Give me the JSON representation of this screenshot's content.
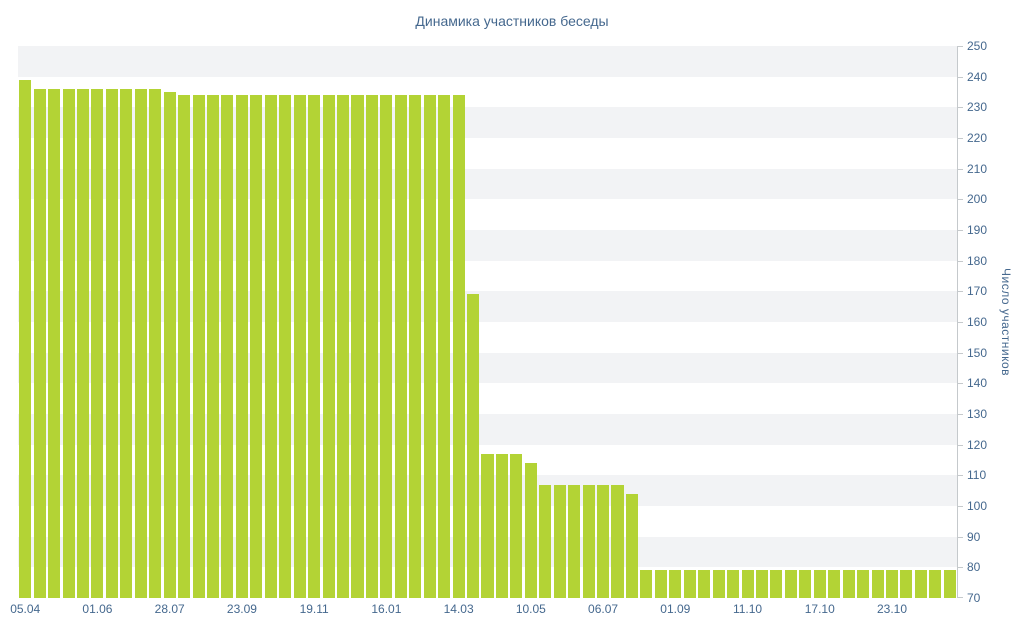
{
  "chart": {
    "title": "Динамика участников беседы",
    "ylabel": "Число участников"
  },
  "colors": {
    "bar": "#b3d335",
    "text": "#45688e",
    "stripe_dark": "#f2f3f5",
    "stripe_light": "#ffffff",
    "axis": "#c5c9cc"
  },
  "chart_data": {
    "type": "bar",
    "title": "Динамика участников беседы",
    "xlabel": "",
    "ylabel": "Число участников",
    "ylim": [
      70,
      250
    ],
    "grid": "striped-horizontal-bands",
    "legend": "none",
    "y_ticks": [
      70,
      80,
      90,
      100,
      110,
      120,
      130,
      140,
      150,
      160,
      170,
      180,
      190,
      200,
      210,
      220,
      230,
      240,
      250
    ],
    "x_tick_labels": [
      "05.04",
      "01.06",
      "28.07",
      "23.09",
      "19.11",
      "16.01",
      "14.03",
      "10.05",
      "06.07",
      "01.09",
      "11.10",
      "17.10",
      "23.10"
    ],
    "x_tick_every": 5,
    "values": [
      239,
      236,
      236,
      236,
      236,
      236,
      236,
      236,
      236,
      236,
      235,
      234,
      234,
      234,
      234,
      234,
      234,
      234,
      234,
      234,
      234,
      234,
      234,
      234,
      234,
      234,
      234,
      234,
      234,
      234,
      234,
      169,
      117,
      117,
      117,
      114,
      107,
      107,
      107,
      107,
      107,
      107,
      104,
      79,
      79,
      79,
      79,
      79,
      79,
      79,
      79,
      79,
      79,
      79,
      79,
      79,
      79,
      79,
      79,
      79,
      79,
      79,
      79,
      79,
      79
    ]
  }
}
